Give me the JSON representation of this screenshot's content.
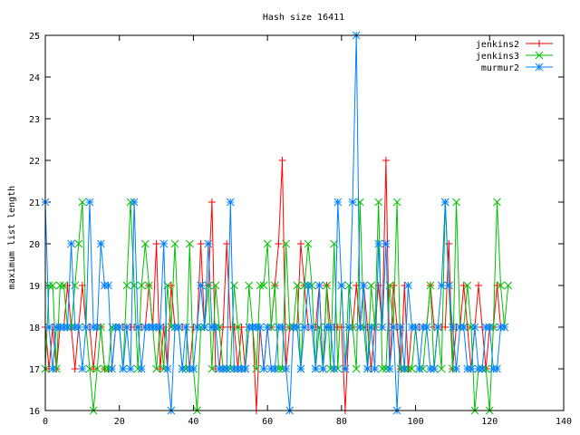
{
  "chart_data": {
    "type": "line",
    "title": "Hash size 16411",
    "xlabel": "",
    "ylabel": "maximum list length",
    "xlim": [
      0,
      140
    ],
    "ylim": [
      16,
      25
    ],
    "xticks": [
      0,
      20,
      40,
      60,
      80,
      100,
      120,
      140
    ],
    "yticks": [
      16,
      17,
      18,
      19,
      20,
      21,
      22,
      23,
      24,
      25
    ],
    "grid": false,
    "legend_position": "top-right",
    "series": [
      {
        "name": "jenkins2",
        "color": "#ff0000",
        "marker": "plus",
        "x": [
          0,
          1,
          2,
          3,
          4,
          5,
          6,
          7,
          8,
          9,
          10,
          11,
          12,
          13,
          14,
          15,
          16,
          17,
          18,
          19,
          20,
          21,
          22,
          23,
          24,
          25,
          26,
          27,
          28,
          29,
          30,
          31,
          32,
          33,
          34,
          35,
          36,
          37,
          38,
          39,
          40,
          41,
          42,
          43,
          44,
          45,
          46,
          47,
          48,
          49,
          50,
          51,
          52,
          53,
          54,
          55,
          56,
          57,
          58,
          59,
          60,
          61,
          62,
          63,
          64,
          65,
          66,
          67,
          68,
          69,
          70,
          71,
          72,
          73,
          74,
          75,
          76,
          77,
          78,
          79,
          80,
          81,
          82,
          83,
          84,
          85,
          86,
          87,
          88,
          89,
          90,
          91,
          92,
          93,
          94,
          95,
          96,
          97,
          98,
          99,
          100,
          101,
          102,
          103,
          104,
          105,
          106,
          107,
          108,
          109,
          110,
          111,
          112,
          113,
          114,
          115,
          116,
          117,
          118,
          119,
          120,
          121,
          122,
          123,
          124
        ],
        "y": [
          18,
          17,
          18,
          17,
          18,
          18,
          19,
          18,
          17,
          18,
          19,
          18,
          18,
          17,
          18,
          18,
          17,
          17,
          17,
          18,
          18,
          18,
          18,
          18,
          18,
          18,
          18,
          18,
          19,
          18,
          20,
          17,
          18,
          17,
          19,
          18,
          18,
          18,
          18,
          17,
          18,
          18,
          20,
          18,
          19,
          21,
          17,
          17,
          18,
          20,
          18,
          18,
          17,
          18,
          17,
          18,
          18,
          16,
          18,
          17,
          18,
          18,
          19,
          20,
          22,
          17,
          18,
          18,
          18,
          20,
          19,
          18,
          18,
          18,
          19,
          17,
          19,
          18,
          18,
          18,
          18,
          16,
          18,
          18,
          19,
          18,
          19,
          18,
          17,
          18,
          19,
          18,
          22,
          17,
          19,
          18,
          17,
          19,
          17,
          18,
          18,
          18,
          18,
          18,
          19,
          18,
          18,
          18,
          18,
          20,
          17,
          18,
          18,
          19,
          18,
          17,
          18,
          19,
          18,
          17,
          18,
          18,
          19,
          18,
          18
        ]
      },
      {
        "name": "jenkins3",
        "color": "#00c000",
        "marker": "cross",
        "x": [
          0,
          1,
          2,
          3,
          4,
          5,
          6,
          7,
          8,
          9,
          10,
          11,
          12,
          13,
          14,
          15,
          16,
          17,
          18,
          19,
          20,
          21,
          22,
          23,
          24,
          25,
          26,
          27,
          28,
          29,
          30,
          31,
          32,
          33,
          34,
          35,
          36,
          37,
          38,
          39,
          40,
          41,
          42,
          43,
          44,
          45,
          46,
          47,
          48,
          49,
          50,
          51,
          52,
          53,
          54,
          55,
          56,
          57,
          58,
          59,
          60,
          61,
          62,
          63,
          64,
          65,
          66,
          67,
          68,
          69,
          70,
          71,
          72,
          73,
          74,
          75,
          76,
          77,
          78,
          79,
          80,
          81,
          82,
          83,
          84,
          85,
          86,
          87,
          88,
          89,
          90,
          91,
          92,
          93,
          94,
          95,
          96,
          97,
          98,
          99,
          100,
          101,
          102,
          103,
          104,
          105,
          106,
          107,
          108,
          109,
          110,
          111,
          112,
          113,
          114,
          115,
          116,
          117,
          118,
          119,
          120,
          121,
          122,
          123,
          124,
          125
        ],
        "y": [
          17,
          19,
          19,
          17,
          19,
          19,
          18,
          18,
          19,
          20,
          21,
          18,
          17,
          16,
          17,
          18,
          17,
          17,
          18,
          18,
          18,
          17,
          19,
          21,
          19,
          17,
          19,
          20,
          19,
          18,
          17,
          18,
          17,
          19,
          18,
          20,
          18,
          17,
          17,
          20,
          17,
          16,
          18,
          18,
          19,
          17,
          19,
          18,
          17,
          17,
          17,
          19,
          18,
          17,
          17,
          19,
          18,
          17,
          19,
          19,
          20,
          18,
          19,
          17,
          17,
          20,
          18,
          18,
          19,
          17,
          19,
          20,
          19,
          17,
          18,
          17,
          19,
          17,
          20,
          17,
          19,
          17,
          19,
          18,
          17,
          21,
          18,
          17,
          19,
          18,
          21,
          17,
          17,
          19,
          18,
          21,
          17,
          17,
          17,
          17,
          18,
          17,
          17,
          18,
          19,
          17,
          18,
          17,
          21,
          19,
          17,
          21,
          18,
          18,
          19,
          18,
          16,
          17,
          17,
          17,
          16,
          18,
          21,
          19,
          18,
          19
        ]
      },
      {
        "name": "murmur2",
        "color": "#0080ff",
        "marker": "star",
        "x": [
          0,
          1,
          2,
          3,
          4,
          5,
          6,
          7,
          8,
          9,
          10,
          11,
          12,
          13,
          14,
          15,
          16,
          17,
          18,
          19,
          20,
          21,
          22,
          23,
          24,
          25,
          26,
          27,
          28,
          29,
          30,
          31,
          32,
          33,
          34,
          35,
          36,
          37,
          38,
          39,
          40,
          41,
          42,
          43,
          44,
          45,
          46,
          47,
          48,
          49,
          50,
          51,
          52,
          53,
          54,
          55,
          56,
          57,
          58,
          59,
          60,
          61,
          62,
          63,
          64,
          65,
          66,
          67,
          68,
          69,
          70,
          71,
          72,
          73,
          74,
          75,
          76,
          77,
          78,
          79,
          80,
          81,
          82,
          83,
          84,
          85,
          86,
          87,
          88,
          89,
          90,
          91,
          92,
          93,
          94,
          95,
          96,
          97,
          98,
          99,
          100,
          101,
          102,
          103,
          104,
          105,
          106,
          107,
          108,
          109,
          110,
          111,
          112,
          113,
          114,
          115,
          116,
          117,
          118,
          119,
          120,
          121,
          122,
          123,
          124
        ],
        "y": [
          21,
          18,
          17,
          18,
          18,
          18,
          18,
          20,
          18,
          18,
          17,
          18,
          21,
          18,
          18,
          20,
          19,
          19,
          17,
          18,
          18,
          17,
          18,
          17,
          21,
          18,
          17,
          18,
          18,
          18,
          18,
          18,
          20,
          17,
          16,
          18,
          18,
          17,
          18,
          17,
          17,
          18,
          19,
          18,
          20,
          18,
          18,
          17,
          17,
          17,
          21,
          17,
          17,
          17,
          17,
          18,
          18,
          18,
          18,
          17,
          18,
          17,
          17,
          18,
          18,
          17,
          16,
          18,
          18,
          17,
          18,
          19,
          18,
          17,
          19,
          17,
          18,
          18,
          17,
          21,
          19,
          17,
          18,
          21,
          25,
          18,
          19,
          17,
          18,
          17,
          20,
          18,
          20,
          17,
          18,
          16,
          18,
          17,
          19,
          18,
          18,
          17,
          18,
          18,
          17,
          17,
          18,
          19,
          21,
          19,
          18,
          17,
          18,
          18,
          17,
          17,
          18,
          17,
          17,
          18,
          18,
          17,
          17,
          18,
          18
        ]
      }
    ]
  }
}
